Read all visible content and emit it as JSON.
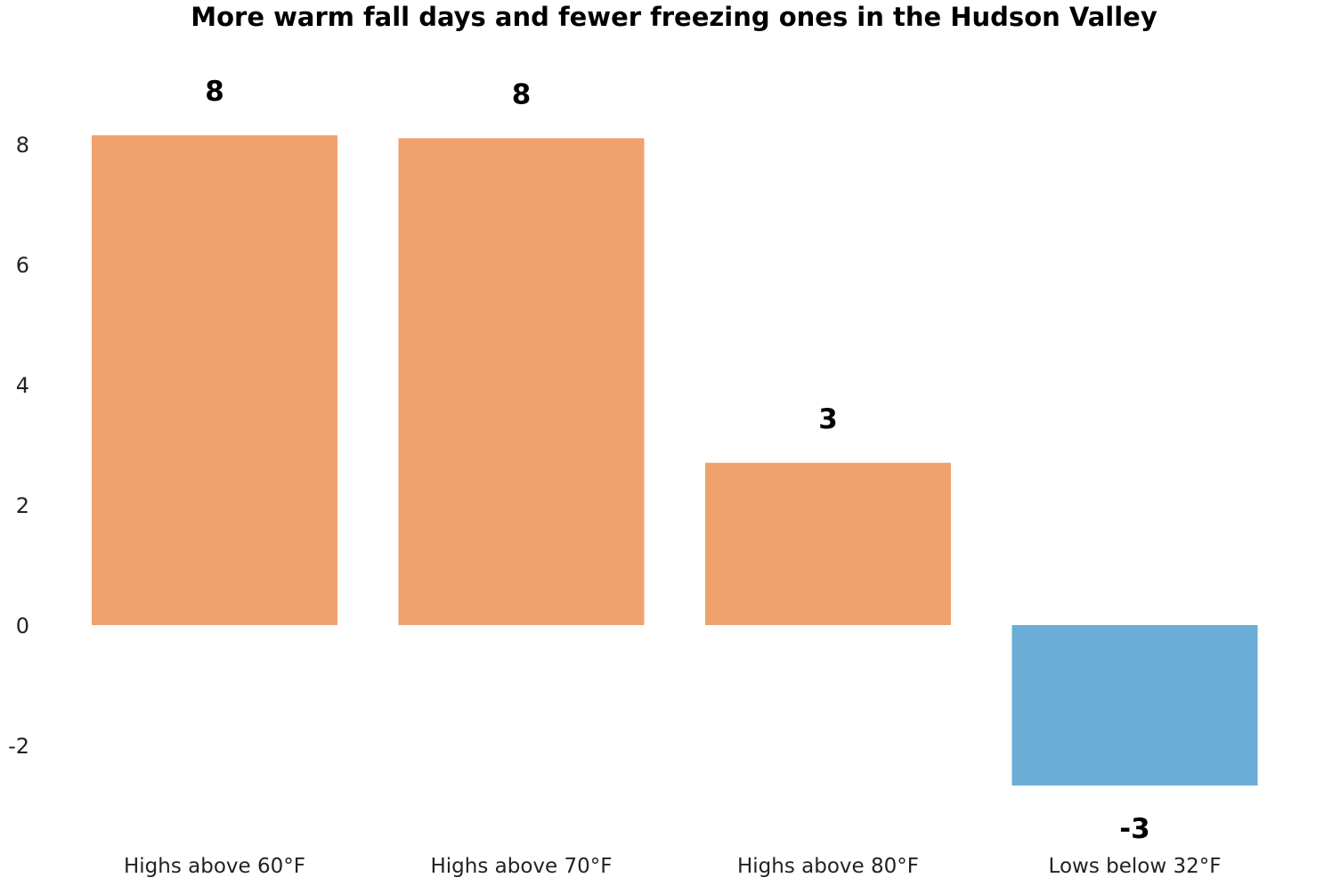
{
  "chart_data": {
    "type": "bar",
    "title": "More warm fall days and fewer freezing ones in the Hudson Valley",
    "xlabel": "",
    "ylabel": "",
    "categories": [
      "Highs above 60°F",
      "Highs above 70°F",
      "Highs above 80°F",
      "Lows below 32°F"
    ],
    "values": [
      8.15,
      8.1,
      2.7,
      -2.67
    ],
    "data_labels": [
      "8",
      "8",
      "3",
      "-3"
    ],
    "bar_colors": [
      "#f0a26d",
      "#f0a26d",
      "#f0a26d",
      "#6aadd6"
    ],
    "yticks": [
      -2,
      0,
      2,
      4,
      6,
      8
    ],
    "ylim": [
      -2.9,
      8.4
    ],
    "grid": false,
    "legend": "none"
  }
}
